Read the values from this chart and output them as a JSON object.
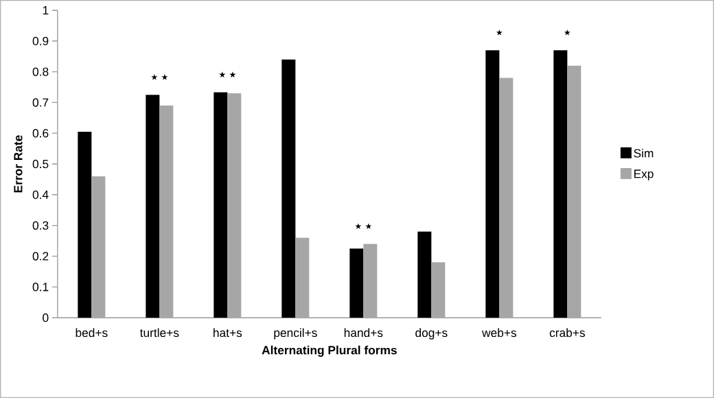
{
  "chart_data": {
    "type": "bar",
    "xlabel": "Alternating Plural forms",
    "ylabel": "Error Rate",
    "categories": [
      "bed+s",
      "turtle+s",
      "hat+s",
      "pencil+s",
      "hand+s",
      "dog+s",
      "web+s",
      "crab+s"
    ],
    "series": [
      {
        "name": "Sim",
        "color": "#000000",
        "values": [
          0.605,
          0.725,
          0.733,
          0.84,
          0.225,
          0.28,
          0.87,
          0.87
        ]
      },
      {
        "name": "Exp",
        "color": "#a6a6a6",
        "values": [
          0.46,
          0.69,
          0.73,
          0.26,
          0.24,
          0.18,
          0.78,
          0.82
        ]
      }
    ],
    "ylim": [
      0,
      1
    ],
    "yticks": [
      0,
      0.1,
      0.2,
      0.3,
      0.4,
      0.5,
      0.6,
      0.7,
      0.8,
      0.9,
      1
    ],
    "annotations": [
      {
        "text": "⋆⋆",
        "x": "turtle+s",
        "y": 0.725
      },
      {
        "text": "⋆⋆",
        "x": "hat+s",
        "y": 0.733
      },
      {
        "text": "⋆⋆",
        "x": "hand+s",
        "y": 0.24
      },
      {
        "text": "⋆",
        "x": "web+s",
        "y": 0.87
      },
      {
        "text": "⋆",
        "x": "crab+s",
        "y": 0.87
      }
    ],
    "grid": false,
    "legend": "right"
  }
}
